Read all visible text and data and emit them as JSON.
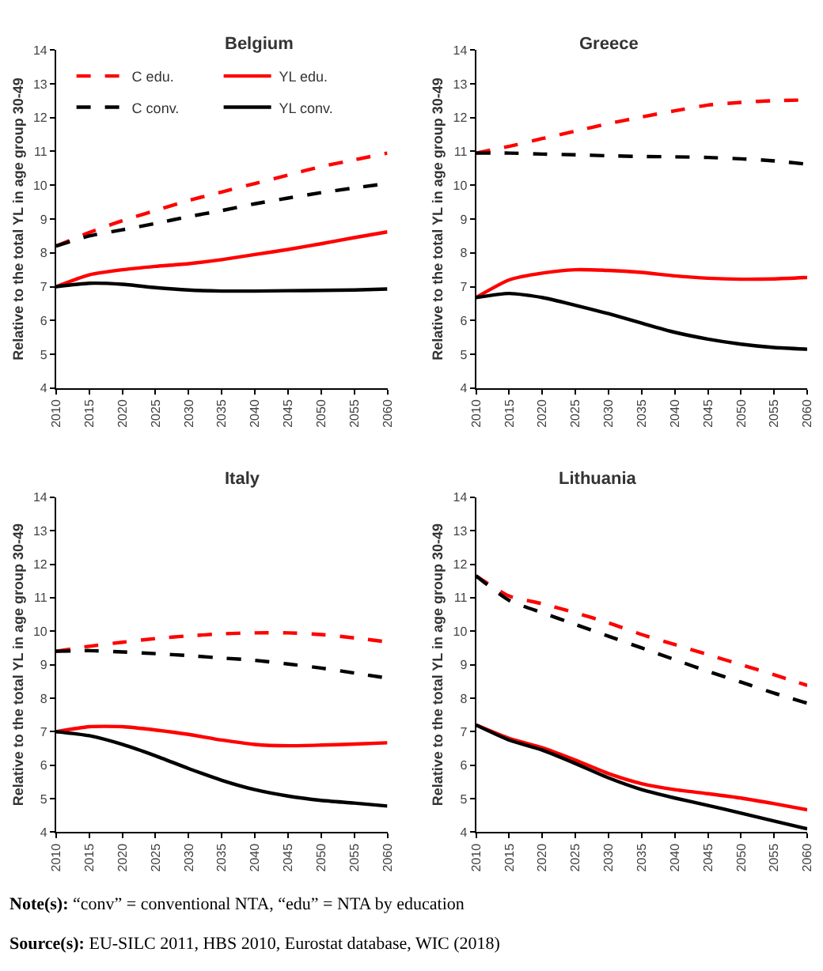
{
  "chart_data": [
    {
      "type": "line",
      "title": "Belgium",
      "ylabel": "Relative to the total YL in age group 30-49",
      "x": [
        2010,
        2015,
        2020,
        2025,
        2030,
        2035,
        2040,
        2045,
        2050,
        2055,
        2060
      ],
      "xlim": [
        2010,
        2060
      ],
      "xticks": [
        2010,
        2015,
        2020,
        2025,
        2030,
        2035,
        2040,
        2045,
        2050,
        2055,
        2060
      ],
      "ylim": [
        4,
        14
      ],
      "yticks": [
        4,
        5,
        6,
        7,
        8,
        9,
        10,
        11,
        12,
        13,
        14
      ],
      "legend": "top left",
      "series": [
        {
          "name": "C edu.",
          "color": "#ff0000",
          "line_style": "dashed",
          "values": [
            8.2,
            8.6,
            8.95,
            9.25,
            9.55,
            9.8,
            10.05,
            10.3,
            10.55,
            10.75,
            10.95
          ]
        },
        {
          "name": "YL edu.",
          "color": "#ff0000",
          "line_style": "solid",
          "values": [
            7.0,
            7.35,
            7.5,
            7.6,
            7.68,
            7.8,
            7.95,
            8.1,
            8.27,
            8.45,
            8.62
          ]
        },
        {
          "name": "C conv.",
          "color": "#000000",
          "line_style": "dashed",
          "values": [
            8.2,
            8.5,
            8.68,
            8.87,
            9.07,
            9.25,
            9.45,
            9.62,
            9.78,
            9.92,
            10.05
          ]
        },
        {
          "name": "YL conv.",
          "color": "#000000",
          "line_style": "solid",
          "values": [
            7.0,
            7.1,
            7.07,
            6.97,
            6.9,
            6.87,
            6.87,
            6.88,
            6.89,
            6.9,
            6.93
          ]
        }
      ]
    },
    {
      "type": "line",
      "title": "Greece",
      "ylabel": "Relative to the total YL in age group 30-49",
      "x": [
        2010,
        2015,
        2020,
        2025,
        2030,
        2035,
        2040,
        2045,
        2050,
        2055,
        2060
      ],
      "xlim": [
        2010,
        2060
      ],
      "xticks": [
        2010,
        2015,
        2020,
        2025,
        2030,
        2035,
        2040,
        2045,
        2050,
        2055,
        2060
      ],
      "ylim": [
        4,
        14
      ],
      "yticks": [
        4,
        5,
        6,
        7,
        8,
        9,
        10,
        11,
        12,
        13,
        14
      ],
      "series": [
        {
          "color": "#ff0000",
          "line_style": "dashed",
          "values": [
            10.95,
            11.15,
            11.38,
            11.6,
            11.82,
            12.02,
            12.2,
            12.37,
            12.45,
            12.5,
            12.52
          ]
        },
        {
          "color": "#ff0000",
          "line_style": "solid",
          "values": [
            6.68,
            7.2,
            7.4,
            7.5,
            7.48,
            7.42,
            7.32,
            7.25,
            7.22,
            7.23,
            7.27
          ]
        },
        {
          "color": "#000000",
          "line_style": "dashed",
          "values": [
            10.95,
            10.95,
            10.92,
            10.9,
            10.87,
            10.85,
            10.84,
            10.82,
            10.78,
            10.72,
            10.62
          ]
        },
        {
          "color": "#000000",
          "line_style": "solid",
          "values": [
            6.68,
            6.8,
            6.68,
            6.45,
            6.2,
            5.92,
            5.65,
            5.45,
            5.3,
            5.2,
            5.15
          ]
        }
      ]
    },
    {
      "type": "line",
      "title": "Italy",
      "ylabel": "Relative to the total YL in age group 30-49",
      "x": [
        2010,
        2015,
        2020,
        2025,
        2030,
        2035,
        2040,
        2045,
        2050,
        2055,
        2060
      ],
      "xlim": [
        2010,
        2060
      ],
      "xticks": [
        2010,
        2015,
        2020,
        2025,
        2030,
        2035,
        2040,
        2045,
        2050,
        2055,
        2060
      ],
      "ylim": [
        4,
        14
      ],
      "yticks": [
        4,
        5,
        6,
        7,
        8,
        9,
        10,
        11,
        12,
        13,
        14
      ],
      "series": [
        {
          "color": "#ff0000",
          "line_style": "dashed",
          "values": [
            9.4,
            9.55,
            9.67,
            9.78,
            9.86,
            9.92,
            9.95,
            9.95,
            9.9,
            9.8,
            9.68
          ]
        },
        {
          "color": "#ff0000",
          "line_style": "solid",
          "values": [
            7.0,
            7.15,
            7.15,
            7.05,
            6.92,
            6.75,
            6.62,
            6.58,
            6.6,
            6.63,
            6.67
          ]
        },
        {
          "color": "#000000",
          "line_style": "dashed",
          "values": [
            9.4,
            9.42,
            9.38,
            9.33,
            9.27,
            9.2,
            9.13,
            9.02,
            8.9,
            8.75,
            8.6
          ]
        },
        {
          "color": "#000000",
          "line_style": "solid",
          "values": [
            7.0,
            6.88,
            6.62,
            6.28,
            5.9,
            5.55,
            5.27,
            5.08,
            4.95,
            4.87,
            4.78
          ]
        }
      ]
    },
    {
      "type": "line",
      "title": "Lithuania",
      "ylabel": "Relative to the total YL in age group 30-49",
      "x": [
        2010,
        2015,
        2020,
        2025,
        2030,
        2035,
        2040,
        2045,
        2050,
        2055,
        2060
      ],
      "xlim": [
        2010,
        2060
      ],
      "xticks": [
        2010,
        2015,
        2020,
        2025,
        2030,
        2035,
        2040,
        2045,
        2050,
        2055,
        2060
      ],
      "ylim": [
        4,
        14
      ],
      "yticks": [
        4,
        5,
        6,
        7,
        8,
        9,
        10,
        11,
        12,
        13,
        14
      ],
      "series": [
        {
          "color": "#ff0000",
          "line_style": "dashed",
          "values": [
            11.65,
            11.05,
            10.82,
            10.55,
            10.25,
            9.9,
            9.6,
            9.3,
            9.0,
            8.7,
            8.38
          ]
        },
        {
          "color": "#ff0000",
          "line_style": "solid",
          "values": [
            7.2,
            6.8,
            6.52,
            6.15,
            5.75,
            5.45,
            5.27,
            5.15,
            5.02,
            4.85,
            4.67
          ]
        },
        {
          "color": "#000000",
          "line_style": "dashed",
          "values": [
            11.65,
            10.92,
            10.55,
            10.2,
            9.85,
            9.5,
            9.15,
            8.8,
            8.48,
            8.15,
            7.85
          ]
        },
        {
          "color": "#000000",
          "line_style": "solid",
          "values": [
            7.2,
            6.75,
            6.45,
            6.05,
            5.62,
            5.27,
            5.02,
            4.8,
            4.57,
            4.33,
            4.1
          ]
        }
      ],
      "annotations": [
        "Note(s): “conv” = conventional NTA, “edu” = NTA by education",
        "Source(s): EU-SILC 2011, HBS 2010, Eurostat database, WIC (2018)"
      ]
    }
  ]
}
